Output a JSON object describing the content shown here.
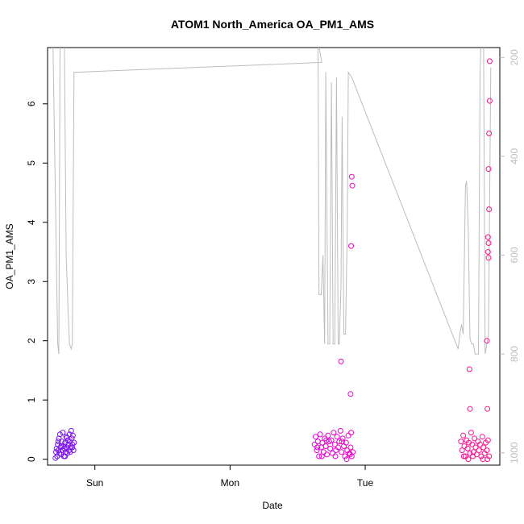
{
  "chart_data": {
    "type": "scatter",
    "title": "ATOM1 North_America OA_PM1_AMS",
    "xlabel": "Date",
    "ylabel": "OA_PM1_AMS",
    "x_ticks": [
      "Sun",
      "Mon",
      "Tue"
    ],
    "x_tick_hours": [
      24,
      48,
      72
    ],
    "xlim_hours": [
      15.6,
      95.9
    ],
    "ylim": [
      -0.1,
      6.95
    ],
    "y_ticks": [
      0,
      1,
      2,
      3,
      4,
      5,
      6
    ],
    "y2_ticks": [
      200,
      400,
      600,
      800,
      1000
    ],
    "y2lim": [
      1025,
      180
    ],
    "grid": false,
    "series": [
      {
        "type": "scatter",
        "points": [
          [
            17.0,
            0.02
          ],
          [
            17.1,
            0.12
          ],
          [
            17.2,
            0.18
          ],
          [
            17.3,
            0.05
          ],
          [
            17.4,
            0.25
          ],
          [
            17.5,
            0.15
          ],
          [
            17.6,
            0.35
          ],
          [
            17.7,
            0.1
          ],
          [
            17.8,
            0.42
          ],
          [
            17.9,
            0.2
          ],
          [
            18.0,
            0.08
          ],
          [
            18.1,
            0.3
          ],
          [
            18.2,
            0.15
          ],
          [
            18.3,
            0.45
          ],
          [
            18.4,
            0.22
          ],
          [
            18.5,
            0.05
          ],
          [
            18.6,
            0.18
          ],
          [
            18.7,
            0.28
          ],
          [
            18.8,
            0.12
          ],
          [
            18.9,
            0.38
          ],
          [
            19.0,
            0.2
          ],
          [
            19.1,
            0.1
          ],
          [
            19.2,
            0.32
          ],
          [
            19.3,
            0.25
          ],
          [
            19.4,
            0.15
          ],
          [
            19.5,
            0.42
          ],
          [
            19.6,
            0.3
          ],
          [
            19.7,
            0.2
          ],
          [
            19.8,
            0.48
          ],
          [
            19.9,
            0.35
          ],
          [
            20.0,
            0.25
          ],
          [
            20.1,
            0.4
          ],
          [
            20.2,
            0.15
          ],
          [
            20.3,
            0.28
          ],
          [
            17.5,
            0.3
          ],
          [
            18.0,
            0.22
          ],
          [
            18.7,
            0.05
          ],
          [
            19.0,
            0.36
          ],
          [
            19.6,
            0.12
          ],
          [
            20.0,
            0.2
          ],
          [
            63.0,
            0.25
          ],
          [
            63.2,
            0.38
          ],
          [
            63.4,
            0.15
          ],
          [
            63.6,
            0.3
          ],
          [
            63.8,
            0.05
          ],
          [
            64.0,
            0.42
          ],
          [
            64.2,
            0.2
          ],
          [
            64.4,
            0.28
          ],
          [
            64.6,
            0.12
          ],
          [
            64.8,
            0.35
          ],
          [
            65.0,
            0.22
          ],
          [
            65.2,
            0.08
          ],
          [
            65.4,
            0.4
          ],
          [
            65.6,
            0.3
          ],
          [
            65.8,
            0.18
          ],
          [
            66.0,
            0.32
          ],
          [
            66.2,
            0.1
          ],
          [
            66.4,
            0.45
          ],
          [
            66.6,
            0.25
          ],
          [
            66.8,
            0.15
          ],
          [
            67.0,
            0.38
          ],
          [
            67.2,
            0.2
          ],
          [
            67.4,
            0.3
          ],
          [
            67.6,
            0.48
          ],
          [
            67.8,
            0.12
          ],
          [
            68.0,
            0.35
          ],
          [
            68.2,
            0.22
          ],
          [
            68.4,
            0.05
          ],
          [
            68.6,
            0.28
          ],
          [
            68.8,
            0.15
          ],
          [
            69.0,
            0.4
          ],
          [
            69.2,
            0.1
          ],
          [
            69.4,
            0.2
          ],
          [
            69.6,
            0.05
          ],
          [
            69.8,
            0.12
          ],
          [
            63.5,
            0.2
          ],
          [
            64.3,
            0.05
          ],
          [
            65.1,
            0.32
          ],
          [
            66.7,
            0.05
          ],
          [
            67.9,
            0.3
          ],
          [
            68.7,
            0.0
          ],
          [
            69.3,
            0.08
          ],
          [
            67.7,
            1.65
          ],
          [
            69.6,
            4.77
          ],
          [
            69.7,
            4.62
          ],
          [
            69.5,
            3.6
          ],
          [
            69.4,
            1.1
          ],
          [
            69.5,
            0.45
          ],
          [
            89.0,
            0.3
          ],
          [
            89.2,
            0.15
          ],
          [
            89.4,
            0.4
          ],
          [
            89.6,
            0.22
          ],
          [
            89.8,
            0.05
          ],
          [
            90.0,
            0.32
          ],
          [
            90.2,
            0.18
          ],
          [
            90.4,
            0.28
          ],
          [
            90.6,
            0.1
          ],
          [
            90.8,
            0.45
          ],
          [
            91.0,
            0.25
          ],
          [
            91.2,
            0.12
          ],
          [
            91.4,
            0.35
          ],
          [
            91.6,
            0.2
          ],
          [
            91.8,
            0.08
          ],
          [
            92.0,
            0.3
          ],
          [
            92.2,
            0.15
          ],
          [
            92.4,
            0.25
          ],
          [
            92.6,
            0.05
          ],
          [
            92.8,
            0.38
          ],
          [
            93.0,
            0.2
          ],
          [
            93.2,
            0.1
          ],
          [
            93.4,
            0.28
          ],
          [
            93.6,
            0.15
          ],
          [
            93.8,
            0.32
          ],
          [
            94.0,
            0.05
          ],
          [
            89.5,
            0.05
          ],
          [
            90.3,
            0.0
          ],
          [
            91.1,
            0.05
          ],
          [
            92.9,
            0.0
          ],
          [
            93.7,
            0.0
          ],
          [
            90.5,
            1.52
          ],
          [
            90.6,
            0.85
          ],
          [
            93.7,
            0.85
          ],
          [
            93.6,
            2.0
          ],
          [
            93.8,
            3.75
          ],
          [
            93.9,
            3.65
          ],
          [
            93.8,
            3.5
          ],
          [
            93.9,
            3.4
          ],
          [
            94.0,
            4.22
          ],
          [
            93.9,
            4.9
          ],
          [
            94.0,
            5.5
          ],
          [
            94.1,
            6.05
          ],
          [
            94.1,
            6.72
          ]
        ]
      },
      {
        "type": "line",
        "axis": "right",
        "points": [
          [
            16.4,
            60
          ],
          [
            17.1,
            560
          ],
          [
            17.4,
            780
          ],
          [
            17.6,
            800
          ],
          [
            17.8,
            200
          ],
          [
            18.0,
            60
          ],
          [
            18.5,
            60
          ],
          [
            18.9,
            600
          ],
          [
            19.2,
            700
          ],
          [
            19.5,
            780
          ],
          [
            19.8,
            790
          ],
          [
            20.0,
            780
          ],
          [
            20.3,
            230
          ],
          [
            64.3,
            210
          ],
          [
            63.2,
            140
          ],
          [
            63.6,
            60
          ],
          [
            63.8,
            680
          ],
          [
            64.2,
            680
          ],
          [
            64.5,
            600
          ],
          [
            64.8,
            780
          ],
          [
            65.0,
            230
          ],
          [
            65.4,
            780
          ],
          [
            65.7,
            780
          ],
          [
            66.0,
            250
          ],
          [
            66.3,
            780
          ],
          [
            66.6,
            780
          ],
          [
            66.9,
            240
          ],
          [
            67.2,
            780
          ],
          [
            67.4,
            780
          ],
          [
            67.7,
            660
          ],
          [
            67.9,
            320
          ],
          [
            68.2,
            760
          ],
          [
            68.5,
            760
          ],
          [
            68.8,
            550
          ],
          [
            69.0,
            230
          ],
          [
            69.6,
            240
          ],
          [
            88.5,
            790
          ],
          [
            88.8,
            760
          ],
          [
            89.1,
            740
          ],
          [
            89.4,
            760
          ],
          [
            89.8,
            460
          ],
          [
            90.0,
            450
          ],
          [
            90.3,
            550
          ],
          [
            90.6,
            770
          ],
          [
            90.9,
            780
          ],
          [
            91.2,
            780
          ],
          [
            91.5,
            800
          ],
          [
            91.8,
            800
          ],
          [
            92.1,
            800
          ],
          [
            92.4,
            230
          ],
          [
            92.7,
            130
          ],
          [
            93.0,
            120
          ],
          [
            93.3,
            800
          ],
          [
            93.6,
            780
          ],
          [
            93.9,
            760
          ],
          [
            94.3,
            220
          ]
        ]
      }
    ]
  }
}
